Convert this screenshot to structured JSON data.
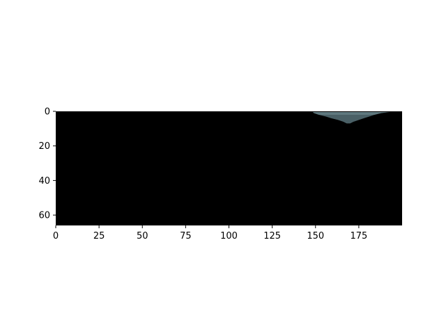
{
  "chart_data": {
    "type": "heatmap",
    "title": "",
    "xlabel": "",
    "ylabel": "",
    "xlim": [
      0,
      200
    ],
    "ylim": [
      66,
      0
    ],
    "x_ticks": [
      {
        "value": 0,
        "label": "0"
      },
      {
        "value": 25,
        "label": "25"
      },
      {
        "value": 50,
        "label": "50"
      },
      {
        "value": 75,
        "label": "75"
      },
      {
        "value": 100,
        "label": "100"
      },
      {
        "value": 125,
        "label": "125"
      },
      {
        "value": 150,
        "label": "150"
      },
      {
        "value": 175,
        "label": "175"
      }
    ],
    "y_ticks": [
      {
        "value": 0,
        "label": "0"
      },
      {
        "value": 20,
        "label": "20"
      },
      {
        "value": 40,
        "label": "40"
      },
      {
        "value": 60,
        "label": "60"
      }
    ],
    "grid": false,
    "legend": "none",
    "background_value_color": "#000000",
    "region": {
      "color": "#4a6066",
      "highlight_color": "#6f8a90",
      "outline": [
        [
          148,
          0
        ],
        [
          149,
          1
        ],
        [
          152,
          2
        ],
        [
          156,
          3
        ],
        [
          159,
          4
        ],
        [
          163,
          5
        ],
        [
          166,
          6
        ],
        [
          168,
          7
        ],
        [
          170,
          7
        ],
        [
          172,
          6
        ],
        [
          175,
          5
        ],
        [
          178,
          4
        ],
        [
          181,
          3
        ],
        [
          184,
          2
        ],
        [
          188,
          1
        ],
        [
          192,
          0.5
        ],
        [
          198,
          0
        ],
        [
          200,
          0
        ]
      ]
    }
  }
}
